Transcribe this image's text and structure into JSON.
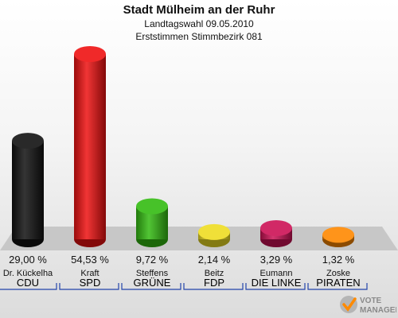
{
  "header": {
    "title": "Stadt Mülheim an der Ruhr",
    "subtitle": "Landtagswahl 09.05.2010",
    "subtitle2": "Erststimmen Stimmbezirk 081"
  },
  "logo": {
    "text_line1": "VOTE",
    "text_line2": "MANAGER",
    "icon": "checkmark-icon"
  },
  "chart_data": {
    "type": "bar",
    "title": "Stadt Mülheim an der Ruhr",
    "subtitle": "Landtagswahl 09.05.2010 — Erststimmen Stimmbezirk 081",
    "categories": [
      "CDU",
      "SPD",
      "GRÜNE",
      "FDP",
      "DIE LINKE",
      "PIRATEN"
    ],
    "candidates": [
      "Dr. Kückelha",
      "Kraft",
      "Steffens",
      "Beitz",
      "Eumann",
      "Zoske"
    ],
    "values": [
      29.0,
      54.53,
      9.72,
      2.14,
      3.29,
      1.32
    ],
    "value_labels": [
      "29,00 %",
      "54,53 %",
      "9,72 %",
      "2,14 %",
      "3,29 %",
      "1,32 %"
    ],
    "colors": [
      "#111111",
      "#ee1111",
      "#33bb11",
      "#eedd22",
      "#cc1155",
      "#ff8800"
    ],
    "unit": "%",
    "ylim": [
      0,
      54.53
    ],
    "grid": false
  }
}
